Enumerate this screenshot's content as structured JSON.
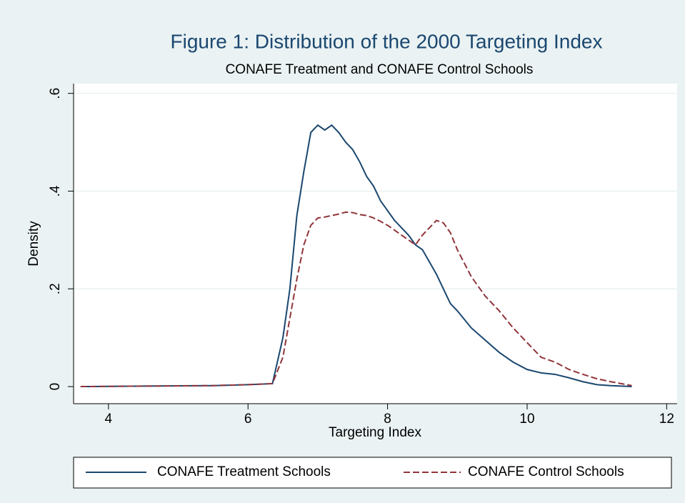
{
  "chart_data": {
    "type": "line",
    "title": "Figure 1: Distribution of the 2000 Targeting Index",
    "subtitle": "CONAFE Treatment and CONAFE Control Schools",
    "x_label": "Targeting Index",
    "y_label": "Density",
    "x": [
      3.6,
      4.5,
      5.5,
      6.0,
      6.35,
      6.5,
      6.6,
      6.7,
      6.8,
      6.9,
      7.0,
      7.1,
      7.2,
      7.3,
      7.4,
      7.5,
      7.6,
      7.7,
      7.8,
      7.9,
      8.0,
      8.1,
      8.2,
      8.3,
      8.4,
      8.5,
      8.6,
      8.7,
      8.8,
      8.9,
      9.0,
      9.2,
      9.4,
      9.6,
      9.8,
      10.0,
      10.2,
      10.4,
      10.6,
      10.8,
      11.0,
      11.2,
      11.5
    ],
    "series": [
      {
        "name": "CONAFE Treatment Schools",
        "color": "#1a476f",
        "dash": false,
        "values": [
          0,
          0.001,
          0.002,
          0.004,
          0.006,
          0.1,
          0.2,
          0.35,
          0.44,
          0.52,
          0.535,
          0.525,
          0.535,
          0.52,
          0.5,
          0.485,
          0.46,
          0.43,
          0.41,
          0.38,
          0.36,
          0.34,
          0.325,
          0.31,
          0.29,
          0.28,
          0.255,
          0.23,
          0.2,
          0.17,
          0.155,
          0.12,
          0.095,
          0.07,
          0.05,
          0.035,
          0.028,
          0.025,
          0.018,
          0.01,
          0.004,
          0.002,
          0
        ]
      },
      {
        "name": "CONAFE Control Schools",
        "color": "#90353b",
        "dash": true,
        "values": [
          0,
          0.001,
          0.002,
          0.004,
          0.006,
          0.06,
          0.14,
          0.22,
          0.29,
          0.33,
          0.345,
          0.347,
          0.35,
          0.353,
          0.357,
          0.356,
          0.352,
          0.35,
          0.345,
          0.338,
          0.33,
          0.32,
          0.31,
          0.3,
          0.29,
          0.31,
          0.325,
          0.34,
          0.335,
          0.315,
          0.28,
          0.225,
          0.185,
          0.155,
          0.12,
          0.09,
          0.06,
          0.05,
          0.035,
          0.025,
          0.016,
          0.01,
          0.002
        ]
      }
    ],
    "xlim": [
      3.5,
      12.15
    ],
    "xticks": [
      4,
      6,
      8,
      10,
      12
    ],
    "ylim": [
      -0.035,
      0.62
    ],
    "yticks": [
      0,
      {
        "value": 0.2,
        "label": ".2"
      },
      {
        "value": 0.4,
        "label": ".4"
      },
      {
        "value": 0.6,
        "label": ".6"
      }
    ],
    "grid": true,
    "legend": "bottom"
  }
}
